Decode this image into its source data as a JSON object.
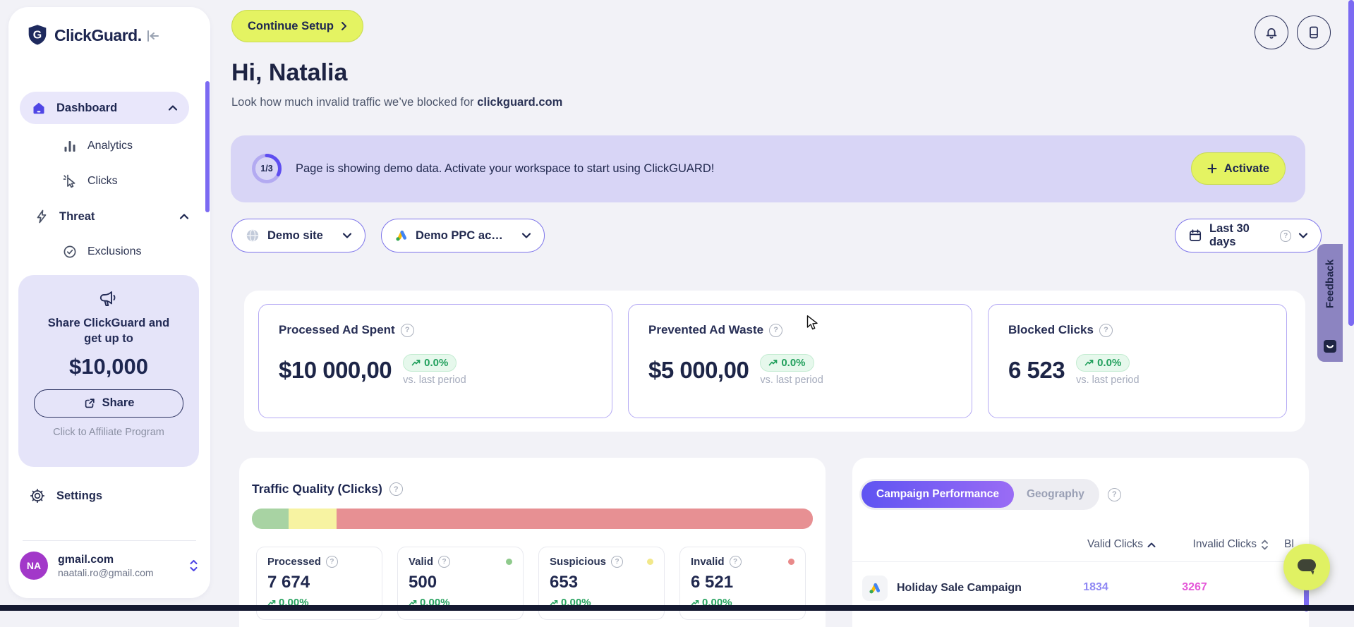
{
  "sidebar": {
    "logo": "ClickGuard.",
    "nav": {
      "dashboard": "Dashboard",
      "analytics": "Analytics",
      "clicks": "Clicks",
      "threat": "Threat",
      "exclusions": "Exclusions",
      "settings": "Settings"
    },
    "share_card": {
      "line1": "Share ClickGuard and",
      "line2": "get up to",
      "amount": "$10,000",
      "button": "Share",
      "footnote": "Click to Affiliate Program"
    },
    "account": {
      "initials": "NA",
      "workspace": "gmail.com",
      "email": "naatali.ro@gmail.com"
    }
  },
  "header": {
    "continue_setup": "Continue Setup",
    "greeting": "Hi, Natalia",
    "subtitle_prefix": "Look how much invalid traffic we’ve blocked for ",
    "subtitle_domain": "clickguard.com"
  },
  "banner": {
    "progress": "1/3",
    "message": "Page is showing demo data. Activate your workspace to start using ClickGUARD!",
    "activate_label": "Activate"
  },
  "filters": {
    "site": "Demo site",
    "ppc_account": "Demo PPC ac…",
    "date_range": "Last 30 days"
  },
  "stats": {
    "cards": [
      {
        "title": "Processed Ad Spent",
        "value": "$10 000,00",
        "delta": "0.0%",
        "period": "vs. last period"
      },
      {
        "title": "Prevented Ad Waste",
        "value": "$5 000,00",
        "delta": "0.0%",
        "period": "vs. last period"
      },
      {
        "title": "Blocked Clicks",
        "value": "6 523",
        "delta": "0.0%",
        "period": "vs. last period"
      }
    ]
  },
  "traffic_quality": {
    "title": "Traffic Quality (Clicks)",
    "bar": [
      {
        "name": "valid",
        "pct": 6.5,
        "color": "#a8d3a3"
      },
      {
        "name": "suspicious",
        "pct": 8.6,
        "color": "#f7f3a2"
      },
      {
        "name": "invalid",
        "pct": 84.9,
        "color": "#e79093"
      }
    ],
    "tiles": [
      {
        "label": "Processed",
        "value": "7 674",
        "delta": "0.00%"
      },
      {
        "label": "Valid",
        "value": "500",
        "delta": "0.00%",
        "dot_color": "#8fca8c"
      },
      {
        "label": "Suspicious",
        "value": "653",
        "delta": "0.00%",
        "dot_color": "#f2e88a"
      },
      {
        "label": "Invalid",
        "value": "6 521",
        "delta": "0.00%",
        "dot_color": "#e98a8a"
      }
    ]
  },
  "campaign": {
    "tabs": [
      "Campaign Performance",
      "Geography"
    ],
    "columns": {
      "valid": "Valid Clicks",
      "invalid": "Invalid Clicks",
      "blocked_truncated": "Bl"
    },
    "rows": [
      {
        "name": "Holiday Sale Campaign",
        "valid": "1834",
        "invalid": "3267"
      }
    ]
  },
  "feedback_label": "Feedback",
  "colors": {
    "accent_indigo": "#5f54f2",
    "lime_button": "#e4f362",
    "banner_bg": "#d8d5f6",
    "valid_green": "#a8d3a3",
    "suspicious_yellow": "#f7f3a2",
    "invalid_red": "#e79093",
    "delta_green": "#22a05d",
    "valid_number": "#8f88f4",
    "invalid_number": "#e457d8",
    "scrollbar": "#7b6af2"
  }
}
